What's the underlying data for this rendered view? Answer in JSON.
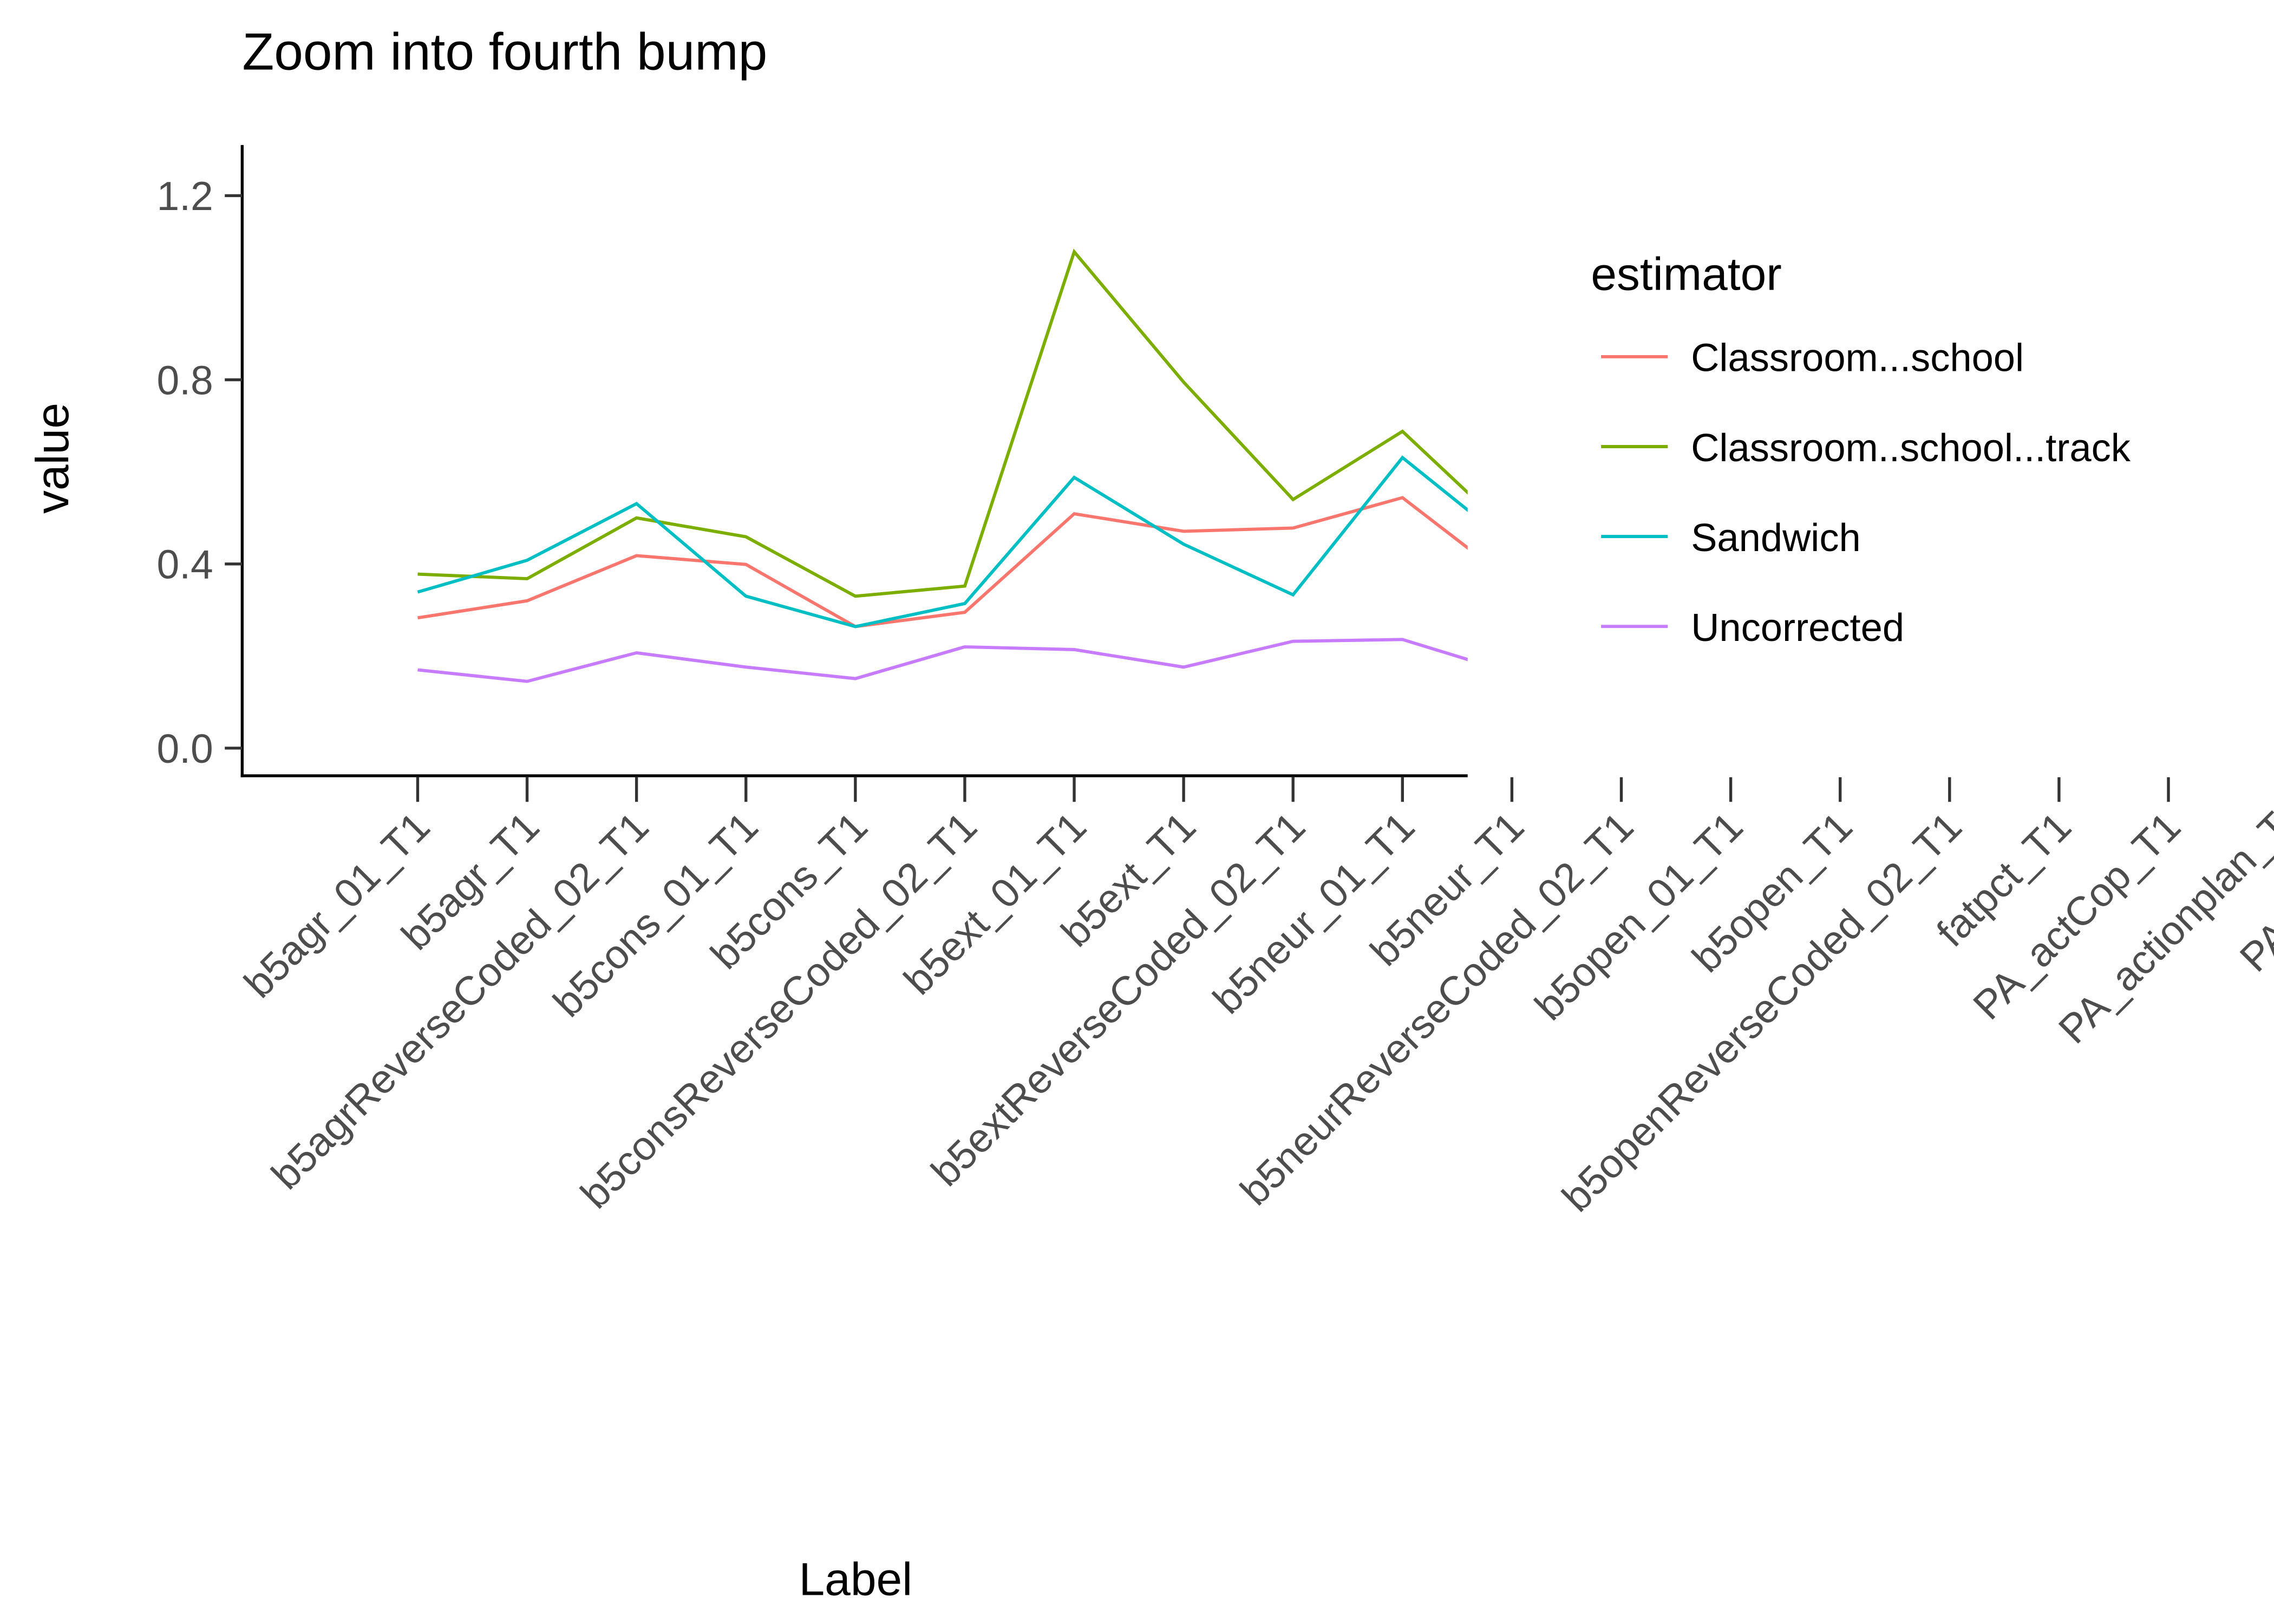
{
  "chart_data": {
    "type": "line",
    "title": "Zoom into fourth bump",
    "x_label": "Label",
    "y_label": "value",
    "legend_title": "estimator",
    "legend_position": "right",
    "categories": [
      "b5agr_01_T1",
      "b5agr_T1",
      "b5agrReverseCoded_02_T1",
      "b5cons_01_T1",
      "b5cons_T1",
      "b5consReverseCoded_02_T1",
      "b5ext_01_T1",
      "b5ext_T1",
      "b5extReverseCoded_02_T1",
      "b5neur_01_T1",
      "b5neur_T1",
      "b5neurReverseCoded_02_T1",
      "b5open_01_T1",
      "b5open_T1",
      "b5openReverseCoded_02_T1",
      "fatpct_T1",
      "PA_actCop_T1",
      "PA_actionplan_T",
      "PA_actplan",
      "PA"
    ],
    "series": [
      {
        "name": "Classroom...school",
        "color": "#F8766D",
        "values": [
          0.283,
          0.32,
          0.418,
          0.399,
          0.264,
          0.295,
          0.509,
          0.471,
          0.478,
          0.544,
          0.361,
          null,
          null,
          null,
          null,
          null,
          null,
          null,
          null,
          null
        ]
      },
      {
        "name": "Classroom..school...track",
        "color": "#7CAE00",
        "values": [
          0.378,
          0.368,
          0.5,
          0.459,
          0.33,
          0.352,
          1.078,
          0.795,
          0.54,
          0.688,
          0.465,
          null,
          null,
          null,
          null,
          null,
          null,
          null,
          null,
          null
        ]
      },
      {
        "name": "Sandwich",
        "color": "#00BFC4",
        "values": [
          0.339,
          0.408,
          0.531,
          0.33,
          0.264,
          0.314,
          0.588,
          0.443,
          0.333,
          0.631,
          0.44,
          null,
          null,
          null,
          null,
          null,
          null,
          null,
          null,
          null
        ]
      },
      {
        "name": "Uncorrected",
        "color": "#C77CFF",
        "values": [
          0.17,
          0.145,
          0.207,
          0.176,
          0.151,
          0.22,
          0.214,
          0.176,
          0.232,
          0.236,
          0.163,
          null,
          null,
          null,
          null,
          null,
          null,
          null,
          null,
          null
        ]
      }
    ],
    "ylim": [
      -0.06,
      1.31
    ],
    "yticks": [
      {
        "value": 0,
        "label": "0.0"
      },
      {
        "value": 0.4,
        "label": "0.4"
      },
      {
        "value": 0.8,
        "label": "0.8"
      },
      {
        "value": 1.2,
        "label": "1.2"
      }
    ],
    "grid": false
  }
}
